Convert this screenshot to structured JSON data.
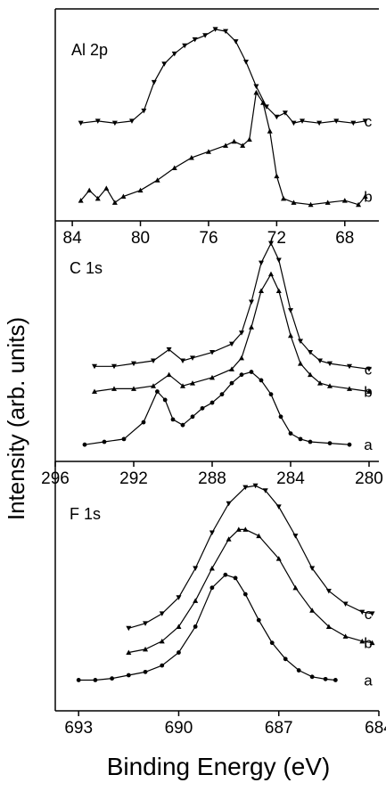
{
  "figure": {
    "ylabel": "Intensity (arb. units)",
    "xlabel": "Binding Energy (eV)"
  },
  "chart_data": [
    {
      "type": "line",
      "title": "Al 2p",
      "xlim": [
        85,
        66
      ],
      "x_ticks": [
        84,
        80,
        76,
        72,
        68
      ],
      "series": [
        {
          "name": "c",
          "marker": "triangle-down",
          "x": [
            83.5,
            82.5,
            81.5,
            80.5,
            79.8,
            79.2,
            78.6,
            78.0,
            77.4,
            76.8,
            76.2,
            75.6,
            75.0,
            74.4,
            73.8,
            73.2,
            72.6,
            72.0,
            71.5,
            71.0,
            70.5,
            69.5,
            68.5,
            67.5,
            66.8
          ],
          "y": [
            0.4,
            0.5,
            0.4,
            0.5,
            1.0,
            2.4,
            3.3,
            3.8,
            4.2,
            4.5,
            4.7,
            5.0,
            4.9,
            4.4,
            3.4,
            2.2,
            1.2,
            0.7,
            0.9,
            0.4,
            0.5,
            0.4,
            0.5,
            0.4,
            0.5
          ]
        },
        {
          "name": "b",
          "marker": "triangle-up",
          "x": [
            83.5,
            83.0,
            82.5,
            82.0,
            81.5,
            81.0,
            80.0,
            79.0,
            78.0,
            77.0,
            76.0,
            75.0,
            74.5,
            74.0,
            73.6,
            73.2,
            72.8,
            72.4,
            72.0,
            71.6,
            71.0,
            70.0,
            69.0,
            68.0,
            67.2,
            66.8
          ],
          "y": [
            0.4,
            0.9,
            0.5,
            1.0,
            0.3,
            0.6,
            0.9,
            1.4,
            2.0,
            2.5,
            2.8,
            3.1,
            3.3,
            3.1,
            3.4,
            5.7,
            5.2,
            3.8,
            1.6,
            0.5,
            0.3,
            0.2,
            0.3,
            0.4,
            0.2,
            0.6
          ]
        }
      ]
    },
    {
      "type": "line",
      "title": "C 1s",
      "xlim": [
        296,
        279.5
      ],
      "x_ticks": [
        296,
        292,
        288,
        284,
        280
      ],
      "series": [
        {
          "name": "c",
          "marker": "triangle-down",
          "x": [
            294,
            293,
            292,
            291,
            290.2,
            289.5,
            289,
            288,
            287,
            286.5,
            286,
            285.5,
            285,
            284.6,
            284,
            283.5,
            283,
            282.5,
            282,
            281,
            280
          ],
          "y": [
            0.5,
            0.5,
            0.6,
            0.7,
            1.1,
            0.7,
            0.8,
            1.0,
            1.3,
            1.7,
            2.8,
            4.2,
            4.9,
            4.3,
            2.5,
            1.4,
            1.0,
            0.7,
            0.6,
            0.5,
            0.4
          ]
        },
        {
          "name": "b",
          "marker": "triangle-up",
          "x": [
            294,
            293,
            292,
            291,
            290.2,
            289.5,
            289,
            288,
            287,
            286.5,
            286,
            285.5,
            285,
            284.6,
            284,
            283.5,
            283,
            282.5,
            282,
            281,
            280
          ],
          "y": [
            0.0,
            0.1,
            0.1,
            0.2,
            0.6,
            0.2,
            0.3,
            0.5,
            0.8,
            1.2,
            2.3,
            3.6,
            4.2,
            3.6,
            2.0,
            1.0,
            0.6,
            0.3,
            0.2,
            0.1,
            0.0
          ]
        },
        {
          "name": "a",
          "marker": "circle",
          "x": [
            294.5,
            293.5,
            292.5,
            291.5,
            290.8,
            290.4,
            290,
            289.5,
            289,
            288.5,
            288,
            287.5,
            287,
            286.5,
            286,
            285.5,
            285,
            284.5,
            284,
            283.5,
            283,
            282,
            281
          ],
          "y": [
            0.0,
            0.1,
            0.2,
            0.8,
            1.9,
            1.6,
            0.9,
            0.7,
            1.0,
            1.3,
            1.5,
            1.8,
            2.2,
            2.5,
            2.6,
            2.3,
            1.8,
            1.0,
            0.4,
            0.2,
            0.1,
            0.05,
            0.0
          ]
        }
      ]
    },
    {
      "type": "line",
      "title": "F 1s",
      "xlim": [
        693.7,
        684
      ],
      "x_ticks": [
        693,
        690,
        687,
        684
      ],
      "series": [
        {
          "name": "c",
          "marker": "triangle-down",
          "x": [
            691.5,
            691,
            690.5,
            690,
            689.5,
            689,
            688.5,
            688,
            687.7,
            687.4,
            687,
            686.5,
            686,
            685.5,
            685,
            684.5,
            684.2
          ],
          "y": [
            0.35,
            0.5,
            0.8,
            1.3,
            2.2,
            3.3,
            4.2,
            4.7,
            4.75,
            4.6,
            4.1,
            3.2,
            2.2,
            1.5,
            1.1,
            0.85,
            0.8
          ]
        },
        {
          "name": "b",
          "marker": "triangle-up",
          "x": [
            691.5,
            691,
            690.5,
            690,
            689.5,
            689,
            688.5,
            688.2,
            688,
            687.6,
            687,
            686.5,
            686,
            685.5,
            685,
            684.5,
            684.2
          ],
          "y": [
            0.0,
            0.1,
            0.35,
            0.8,
            1.6,
            2.6,
            3.5,
            3.8,
            3.8,
            3.6,
            2.9,
            2.0,
            1.3,
            0.8,
            0.5,
            0.35,
            0.3
          ]
        },
        {
          "name": "a",
          "marker": "circle",
          "x": [
            693,
            692.5,
            692,
            691.5,
            691,
            690.5,
            690,
            689.5,
            689,
            688.6,
            688.3,
            688,
            687.6,
            687.2,
            686.8,
            686.4,
            686,
            685.6,
            685.3
          ],
          "y": [
            0.05,
            0.05,
            0.1,
            0.2,
            0.3,
            0.5,
            0.9,
            1.7,
            2.9,
            3.3,
            3.2,
            2.7,
            1.9,
            1.2,
            0.7,
            0.35,
            0.15,
            0.08,
            0.05
          ]
        }
      ]
    }
  ]
}
